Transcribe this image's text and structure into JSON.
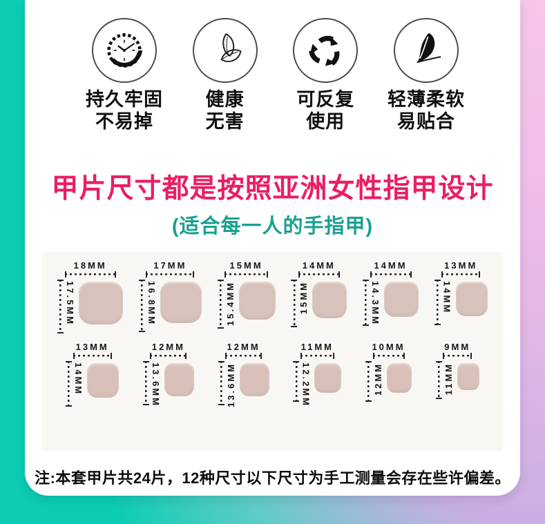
{
  "colors": {
    "title": "#ea1e63",
    "subtitle": "#18a091",
    "bg_teal": "#0bccb2",
    "bg_pink": "#f7c6e8",
    "bg_lavender": "#c9aee3",
    "nail_row1": "#d7c3bb",
    "nail_row2": "#d9c1b9",
    "dim_line": "#222222"
  },
  "features": [
    {
      "icon": "clock-icon",
      "lines": [
        "持久牢固",
        "不易掉"
      ]
    },
    {
      "icon": "leaf-icon",
      "lines": [
        "健康",
        "无害"
      ]
    },
    {
      "icon": "recycle-icon",
      "lines": [
        "可反复",
        "使用"
      ]
    },
    {
      "icon": "feather-icon",
      "lines": [
        "轻薄柔软",
        "易贴合"
      ]
    }
  ],
  "title": "甲片尺寸都是按照亚洲女性指甲设计",
  "subtitle": "(适合每一人的手指甲)",
  "size_chart": {
    "unit": "MM",
    "rows": [
      [
        {
          "width_label": "18MM",
          "height_label": "17.5MM",
          "width_mm": 18,
          "height_mm": 17.5,
          "flip": false
        },
        {
          "width_label": "17MM",
          "height_label": "16.8MM",
          "width_mm": 17,
          "height_mm": 16.8,
          "flip": false
        },
        {
          "width_label": "15MM",
          "height_label": "15.4MM",
          "width_mm": 15,
          "height_mm": 15.4,
          "flip": true
        },
        {
          "width_label": "14MM",
          "height_label": "15MM",
          "width_mm": 14,
          "height_mm": 15.0,
          "flip": true
        },
        {
          "width_label": "14MM",
          "height_label": "14.3MM",
          "width_mm": 14,
          "height_mm": 14.3,
          "flip": false
        },
        {
          "width_label": "13MM",
          "height_label": "14MM",
          "width_mm": 13,
          "height_mm": 14.0,
          "flip": false
        }
      ],
      [
        {
          "width_label": "13MM",
          "height_label": "14MM",
          "width_mm": 13,
          "height_mm": 14.0,
          "flip": false
        },
        {
          "width_label": "12MM",
          "height_label": "13.6MM",
          "width_mm": 12,
          "height_mm": 13.6,
          "flip": false
        },
        {
          "width_label": "12MM",
          "height_label": "13.6MM",
          "width_mm": 12,
          "height_mm": 13.6,
          "flip": true
        },
        {
          "width_label": "11MM",
          "height_label": "12.2MM",
          "width_mm": 11,
          "height_mm": 12.2,
          "flip": false
        },
        {
          "width_label": "10MM",
          "height_label": "12MM",
          "width_mm": 10,
          "height_mm": 12.0,
          "flip": true
        },
        {
          "width_label": "9MM",
          "height_label": "11MM",
          "width_mm": 9,
          "height_mm": 11.0,
          "flip": true
        }
      ]
    ]
  },
  "note": "注:本套甲片共24片，12种尺寸以下尺寸为手工测量会存在些许偏差。"
}
